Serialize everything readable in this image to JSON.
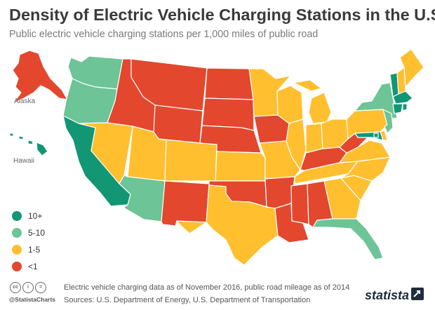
{
  "title": "Density of Electric Vehicle Charging Stations in the U.S.",
  "subtitle": "Public electric vehicle charging stations per 1,000 miles of public road",
  "colors": {
    "10+": "#129674",
    "5-10": "#6cc497",
    "1-5": "#ffbf2f",
    "<1": "#e3472e",
    "border": "#ffffff"
  },
  "map_labels": {
    "alaska": "Alaska",
    "hawaii": "Hawaii"
  },
  "legend": [
    {
      "label": "10+",
      "color": "#129674"
    },
    {
      "label": "5-10",
      "color": "#6cc497"
    },
    {
      "label": "1-5",
      "color": "#ffbf2f"
    },
    {
      "label": "<1",
      "color": "#e3472e"
    }
  ],
  "states": {
    "WA": "5-10",
    "OR": "5-10",
    "CA": "10+",
    "NV": "1-5",
    "ID": "<1",
    "MT": "<1",
    "WY": "<1",
    "UT": "1-5",
    "AZ": "5-10",
    "CO": "1-5",
    "NM": "<1",
    "ND": "<1",
    "SD": "<1",
    "NE": "<1",
    "KS": "1-5",
    "OK": "<1",
    "TX": "1-5",
    "MN": "1-5",
    "IA": "<1",
    "MO": "1-5",
    "AR": "<1",
    "LA": "<1",
    "WI": "1-5",
    "IL": "1-5",
    "MI": "1-5",
    "IN": "1-5",
    "OH": "1-5",
    "KY": "<1",
    "TN": "1-5",
    "MS": "<1",
    "AL": "<1",
    "GA": "1-5",
    "FL": "5-10",
    "SC": "1-5",
    "NC": "1-5",
    "VA": "1-5",
    "WV": "<1",
    "PA": "1-5",
    "NY": "5-10",
    "VT": "10+",
    "NH": "1-5",
    "ME": "1-5",
    "MA": "10+",
    "CT": "10+",
    "RI": "10+",
    "NJ": "5-10",
    "DE": "1-5",
    "MD": "10+",
    "DC": "10+",
    "AK": "<1",
    "HI": "10+"
  },
  "footer": {
    "cc_icons": [
      "cc-icon",
      "by-icon",
      "nd-icon"
    ],
    "handle": "@StatistaCharts",
    "note": "Electric vehicle charging data as of November 2016, public road mileage as of 2014",
    "sources": "Sources: U.S. Department of Energy, U.S. Department of Transportation",
    "brand": "statista"
  }
}
